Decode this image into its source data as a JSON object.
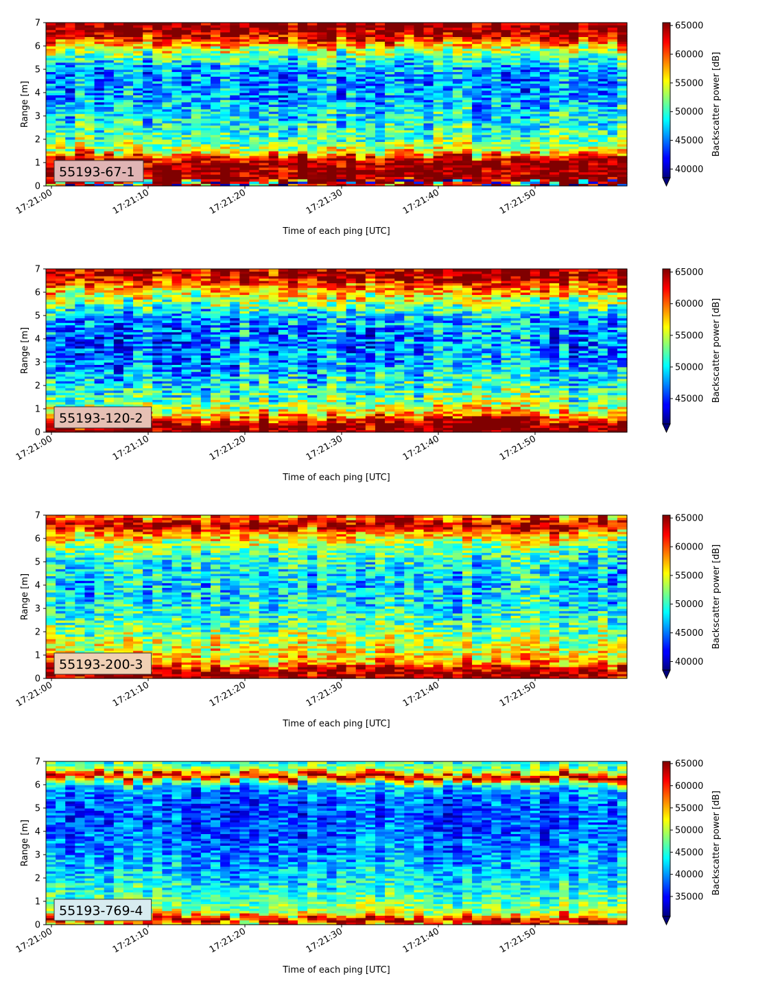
{
  "chart_data": [
    {
      "type": "heatmap",
      "panel_label": "55193-67-1",
      "panel_label_bg": "#e0b4b4",
      "xlabel": "Time of each ping [UTC]",
      "ylabel": "Range [m]",
      "x_ticks": [
        "17:21:00",
        "17:21:10",
        "17:21:20",
        "17:21:30",
        "17:21:40",
        "17:21:50"
      ],
      "y_ticks": [
        "0",
        "1",
        "2",
        "3",
        "4",
        "5",
        "6",
        "7"
      ],
      "ylim": [
        0,
        7
      ],
      "pings": 60,
      "range_bins": 70,
      "colorbar": {
        "label": "Backscatter power [dB]",
        "ticks": [
          "40000",
          "45000",
          "50000",
          "55000",
          "60000",
          "65000"
        ],
        "vmin": 38500,
        "vmax": 65500,
        "extend": "min"
      },
      "profile": [
        [
          0.0,
          63500
        ],
        [
          0.1,
          38000
        ],
        [
          0.2,
          65500
        ],
        [
          1.0,
          65500
        ],
        [
          1.2,
          63000
        ],
        [
          1.5,
          55000
        ],
        [
          2.0,
          51000
        ],
        [
          3.0,
          48500
        ],
        [
          4.0,
          46000
        ],
        [
          5.0,
          46000
        ],
        [
          5.5,
          50000
        ],
        [
          6.0,
          56000
        ],
        [
          6.4,
          63000
        ],
        [
          6.7,
          65500
        ],
        [
          7.0,
          65500
        ]
      ]
    },
    {
      "type": "heatmap",
      "panel_label": "55193-120-2",
      "panel_label_bg": "#e6c0b4",
      "xlabel": "Time of each ping [UTC]",
      "ylabel": "Range [m]",
      "x_ticks": [
        "17:21:00",
        "17:21:10",
        "17:21:20",
        "17:21:30",
        "17:21:40",
        "17:21:50"
      ],
      "y_ticks": [
        "0",
        "1",
        "2",
        "3",
        "4",
        "5",
        "6",
        "7"
      ],
      "ylim": [
        0,
        7
      ],
      "pings": 60,
      "range_bins": 70,
      "colorbar": {
        "label": "Backscatter power [dB]",
        "ticks": [
          "45000",
          "50000",
          "55000",
          "60000",
          "65000"
        ],
        "vmin": 41000,
        "vmax": 65500,
        "extend": "min"
      },
      "profile": [
        [
          0.0,
          65500
        ],
        [
          0.4,
          65500
        ],
        [
          0.6,
          61000
        ],
        [
          0.9,
          56500
        ],
        [
          1.3,
          53000
        ],
        [
          2.0,
          51000
        ],
        [
          3.0,
          48000
        ],
        [
          4.0,
          47000
        ],
        [
          5.0,
          48500
        ],
        [
          5.6,
          54000
        ],
        [
          6.0,
          57500
        ],
        [
          6.4,
          61000
        ],
        [
          6.7,
          65000
        ],
        [
          7.0,
          64000
        ]
      ]
    },
    {
      "type": "heatmap",
      "panel_label": "55193-200-3",
      "panel_label_bg": "#f0d0b4",
      "xlabel": "Time of each ping [UTC]",
      "ylabel": "Range [m]",
      "x_ticks": [
        "17:21:00",
        "17:21:10",
        "17:21:20",
        "17:21:30",
        "17:21:40",
        "17:21:50"
      ],
      "y_ticks": [
        "0",
        "1",
        "2",
        "3",
        "4",
        "5",
        "6",
        "7"
      ],
      "ylim": [
        0,
        7
      ],
      "pings": 60,
      "range_bins": 70,
      "colorbar": {
        "label": "Backscatter power [dB]",
        "ticks": [
          "40000",
          "45000",
          "50000",
          "55000",
          "60000",
          "65000"
        ],
        "vmin": 38500,
        "vmax": 65500,
        "extend": "min"
      },
      "profile": [
        [
          0.0,
          64000
        ],
        [
          0.3,
          65500
        ],
        [
          0.55,
          60000
        ],
        [
          0.9,
          56000
        ],
        [
          1.5,
          54000
        ],
        [
          2.2,
          51500
        ],
        [
          3.0,
          49000
        ],
        [
          4.0,
          47500
        ],
        [
          5.0,
          49000
        ],
        [
          5.8,
          53000
        ],
        [
          6.3,
          59000
        ],
        [
          6.6,
          65500
        ],
        [
          6.9,
          60000
        ],
        [
          7.0,
          57000
        ]
      ]
    },
    {
      "type": "heatmap",
      "panel_label": "55193-769-4",
      "panel_label_bg": "#d8ecf0",
      "xlabel": "Time of each ping [UTC]",
      "ylabel": "Range [m]",
      "x_ticks": [
        "17:21:00",
        "17:21:10",
        "17:21:20",
        "17:21:30",
        "17:21:40",
        "17:21:50"
      ],
      "y_ticks": [
        "0",
        "1",
        "2",
        "3",
        "4",
        "5",
        "6",
        "7"
      ],
      "ylim": [
        0,
        7
      ],
      "pings": 60,
      "range_bins": 70,
      "colorbar": {
        "label": "Backscatter power [dB]",
        "ticks": [
          "35000",
          "40000",
          "45000",
          "50000",
          "55000",
          "60000",
          "65000"
        ],
        "vmin": 30500,
        "vmax": 65500,
        "extend": "min"
      },
      "profile": [
        [
          0.0,
          52000
        ],
        [
          0.15,
          65500
        ],
        [
          0.3,
          60000
        ],
        [
          0.5,
          50000
        ],
        [
          1.0,
          47000
        ],
        [
          2.0,
          42500
        ],
        [
          3.0,
          40000
        ],
        [
          4.0,
          38000
        ],
        [
          5.0,
          37500
        ],
        [
          5.8,
          40000
        ],
        [
          6.1,
          47000
        ],
        [
          6.35,
          65500
        ],
        [
          6.6,
          50000
        ],
        [
          7.0,
          45000
        ]
      ]
    }
  ]
}
